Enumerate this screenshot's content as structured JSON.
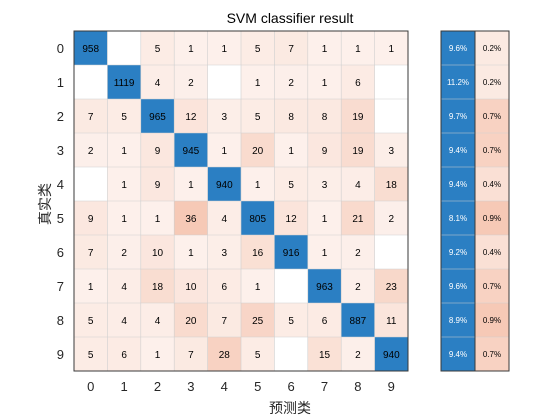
{
  "chart_data": {
    "type": "heatmap",
    "title": "SVM classifier result",
    "xlabel": "预测类",
    "ylabel": "真实类",
    "classes": [
      "0",
      "1",
      "2",
      "3",
      "4",
      "5",
      "6",
      "7",
      "8",
      "9"
    ],
    "matrix": [
      [
        958,
        null,
        5,
        1,
        1,
        5,
        7,
        1,
        1,
        1
      ],
      [
        null,
        1119,
        4,
        2,
        null,
        1,
        2,
        1,
        6,
        null
      ],
      [
        7,
        5,
        965,
        12,
        3,
        5,
        8,
        8,
        19,
        null
      ],
      [
        2,
        1,
        9,
        945,
        1,
        20,
        1,
        9,
        19,
        3
      ],
      [
        null,
        1,
        9,
        1,
        940,
        1,
        5,
        3,
        4,
        18
      ],
      [
        9,
        1,
        1,
        36,
        4,
        805,
        12,
        1,
        21,
        2
      ],
      [
        7,
        2,
        10,
        1,
        3,
        16,
        916,
        1,
        2,
        null
      ],
      [
        1,
        4,
        18,
        10,
        6,
        1,
        null,
        963,
        2,
        23
      ],
      [
        5,
        4,
        4,
        20,
        7,
        25,
        5,
        6,
        887,
        11
      ],
      [
        5,
        6,
        1,
        7,
        28,
        5,
        null,
        15,
        2,
        940
      ]
    ],
    "row_summary": {
      "correct": [
        "9.6%",
        "11.2%",
        "9.7%",
        "9.4%",
        "9.4%",
        "8.1%",
        "9.2%",
        "9.6%",
        "8.9%",
        "9.4%"
      ],
      "incorrect": [
        "0.2%",
        "0.2%",
        "0.7%",
        "0.7%",
        "0.4%",
        "0.9%",
        "0.4%",
        "0.7%",
        "0.9%",
        "0.7%"
      ]
    },
    "grid": true,
    "colors": {
      "diagonal": "#2b7fc3",
      "offdiag_max": "#f6c9b6",
      "offdiag_min": "#ffffff",
      "grid_line": "#3a3a3a",
      "text_dark": "#000000",
      "text_light": "#ffffff"
    }
  }
}
